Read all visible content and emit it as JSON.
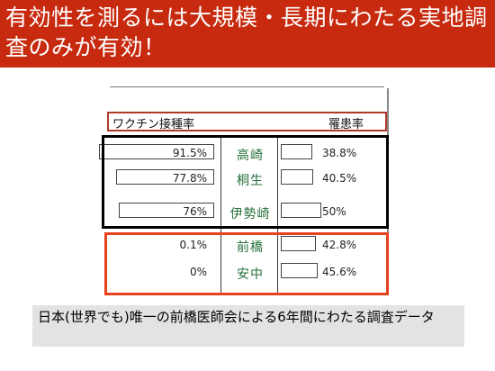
{
  "slide": {
    "title": "有効性を測るには大規模・長期にわたる実地調査のみが有効！",
    "caption": "日本(世界でも)唯一の前橋医師会による6年間にわたる調査データ",
    "colors": {
      "banner": "#c72a0e",
      "black_box": "#000000",
      "red_box": "#e8421e"
    }
  },
  "table": {
    "header": {
      "vaccination_rate": "ワクチン接種率",
      "morbidity_rate": "罹患率"
    },
    "rows": [
      {
        "vaccination": "91.5%",
        "city": "高崎",
        "morbidity": "38.8%",
        "vacc_fraction": 0.915,
        "morb_fraction": 0.388
      },
      {
        "vaccination": "77.8%",
        "city": "桐生",
        "morbidity": "40.5%",
        "vacc_fraction": 0.778,
        "morb_fraction": 0.405
      },
      {
        "vaccination": "76%",
        "city": "伊勢崎",
        "morbidity": "50%",
        "vacc_fraction": 0.76,
        "morb_fraction": 0.5
      },
      {
        "vaccination": "0.1%",
        "city": "前橋",
        "morbidity": "42.8%",
        "vacc_fraction": 0.001,
        "morb_fraction": 0.428
      },
      {
        "vaccination": "0%",
        "city": "安中",
        "morbidity": "45.6%",
        "vacc_fraction": 0.0,
        "morb_fraction": 0.456
      }
    ]
  }
}
